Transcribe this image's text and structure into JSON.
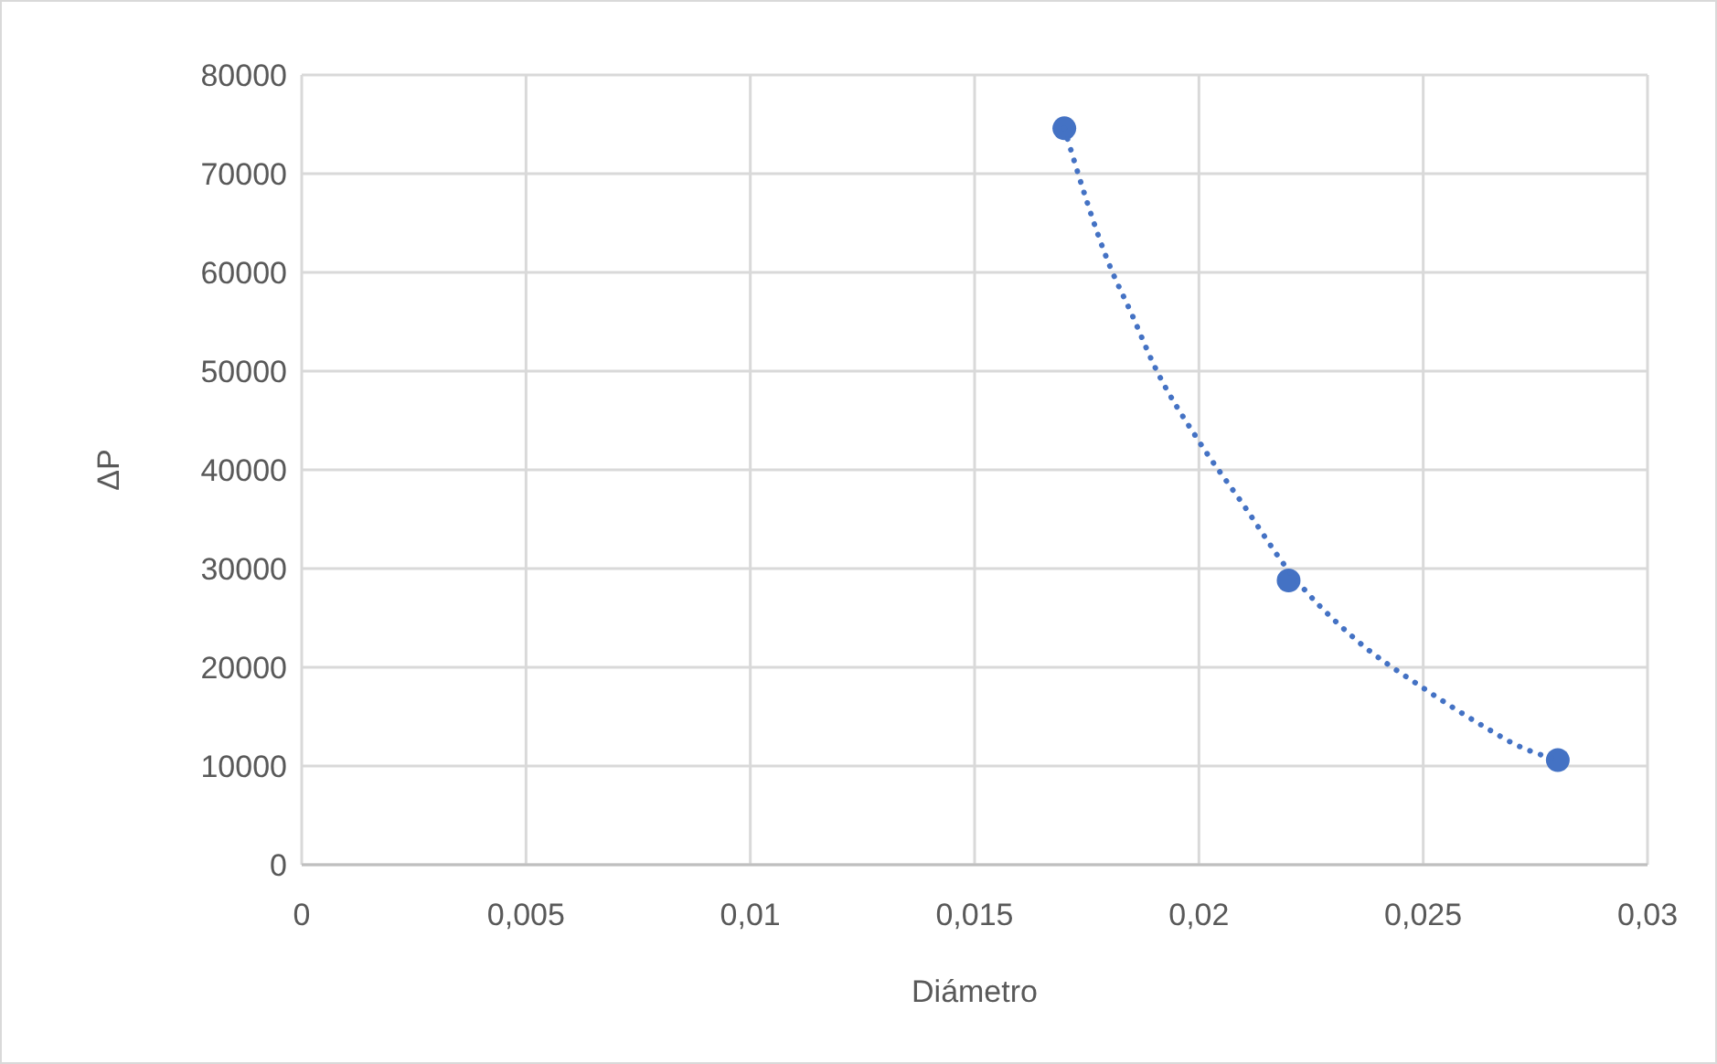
{
  "chart_data": {
    "type": "scatter",
    "xlabel": "Diámetro",
    "ylabel": "ΔP",
    "xlim": [
      0,
      0.03
    ],
    "xticks": [
      {
        "value": 0,
        "label": "0"
      },
      {
        "value": 0.005,
        "label": "0,005"
      },
      {
        "value": 0.01,
        "label": "0,01"
      },
      {
        "value": 0.015,
        "label": "0,015"
      },
      {
        "value": 0.02,
        "label": "0,02"
      },
      {
        "value": 0.025,
        "label": "0,025"
      },
      {
        "value": 0.03,
        "label": "0,03"
      }
    ],
    "ylim": [
      0,
      80000
    ],
    "yticks": [
      0,
      10000,
      20000,
      30000,
      40000,
      50000,
      60000,
      70000,
      80000
    ],
    "grid": true,
    "marker": "circle",
    "series": [
      {
        "color": "#4472c4",
        "x": [
          0.017,
          0.022,
          0.028
        ],
        "values": [
          74600,
          28800,
          10600
        ]
      },
      {
        "type": "line",
        "color": "#4472c4",
        "line_style": "dotted",
        "marker": "none",
        "x": [
          0.017,
          0.018,
          0.0185,
          0.019,
          0.02,
          0.021,
          0.022,
          0.0235,
          0.025,
          0.0265,
          0.027,
          0.028
        ],
        "values": [
          74600,
          60800,
          55800,
          50600,
          42900,
          36400,
          29800,
          22800,
          17900,
          13600,
          12300,
          10600
        ]
      }
    ]
  }
}
